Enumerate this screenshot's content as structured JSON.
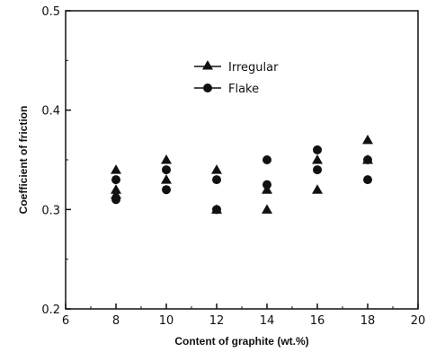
{
  "chart_data": {
    "type": "scatter",
    "title": "",
    "xlabel": "Content of graphite (wt.%)",
    "ylabel": "Coefficient of friction",
    "xlim": [
      6,
      20
    ],
    "ylim": [
      0.2,
      0.5
    ],
    "xticks": [
      6,
      8,
      10,
      12,
      14,
      16,
      18,
      20
    ],
    "yticks": [
      0.2,
      0.3,
      0.4,
      0.5
    ],
    "xtick_labels": [
      "6",
      "8",
      "10",
      "12",
      "14",
      "16",
      "18",
      "20"
    ],
    "ytick_labels": [
      "0.2",
      "0.3",
      "0.4",
      "0.5"
    ],
    "grid": false,
    "legend_position": "top-center",
    "series": [
      {
        "name": "Irregular",
        "marker": "triangle",
        "color": "#111111",
        "points": [
          [
            8,
            0.34
          ],
          [
            8,
            0.32
          ],
          [
            8,
            0.315
          ],
          [
            10,
            0.35
          ],
          [
            10,
            0.33
          ],
          [
            12,
            0.34
          ],
          [
            12,
            0.3
          ],
          [
            14,
            0.32
          ],
          [
            14,
            0.3
          ],
          [
            16,
            0.35
          ],
          [
            16,
            0.32
          ],
          [
            18,
            0.37
          ],
          [
            18,
            0.35
          ]
        ]
      },
      {
        "name": "Flake",
        "marker": "circle",
        "color": "#111111",
        "points": [
          [
            8,
            0.33
          ],
          [
            8,
            0.31
          ],
          [
            10,
            0.34
          ],
          [
            10,
            0.32
          ],
          [
            12,
            0.33
          ],
          [
            12,
            0.3
          ],
          [
            14,
            0.35
          ],
          [
            14,
            0.325
          ],
          [
            16,
            0.36
          ],
          [
            16,
            0.34
          ],
          [
            18,
            0.35
          ],
          [
            18,
            0.33
          ]
        ]
      }
    ]
  }
}
